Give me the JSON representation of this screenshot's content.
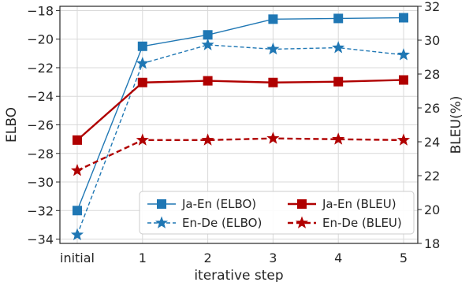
{
  "chart_data": {
    "type": "line",
    "x_label": "iterative step",
    "categories": [
      "initial",
      "1",
      "2",
      "3",
      "4",
      "5"
    ],
    "left_axis": {
      "label": "ELBO",
      "ylim": [
        -34.3,
        -17.7
      ],
      "ticks": [
        -34,
        -32,
        -30,
        -28,
        -26,
        -24,
        -22,
        -20,
        -18
      ]
    },
    "right_axis": {
      "label": "BLEU(%)",
      "ylim": [
        18,
        32
      ],
      "ticks": [
        18,
        20,
        22,
        24,
        26,
        28,
        30,
        32
      ]
    },
    "grid": true,
    "legend_position": "lower-right",
    "series": [
      {
        "name": "Ja-En (ELBO)",
        "axis": "left",
        "color": "#1f77b4",
        "line": "solid",
        "marker": "square",
        "values": [
          -32.0,
          -20.5,
          -19.7,
          -18.6,
          -18.55,
          -18.5
        ]
      },
      {
        "name": "En-De (ELBO)",
        "axis": "left",
        "color": "#1f77b4",
        "line": "dashed",
        "marker": "star",
        "values": [
          -33.7,
          -21.7,
          -20.4,
          -20.7,
          -20.6,
          -21.1
        ]
      },
      {
        "name": "Ja-En (BLEU)",
        "axis": "right",
        "color": "#b00000",
        "line": "solid",
        "marker": "square",
        "values": [
          24.1,
          27.5,
          27.6,
          27.5,
          27.55,
          27.65
        ]
      },
      {
        "name": "En-De (BLEU)",
        "axis": "right",
        "color": "#b00000",
        "line": "dashed",
        "marker": "star",
        "values": [
          22.3,
          24.1,
          24.1,
          24.2,
          24.15,
          24.1
        ]
      }
    ]
  }
}
